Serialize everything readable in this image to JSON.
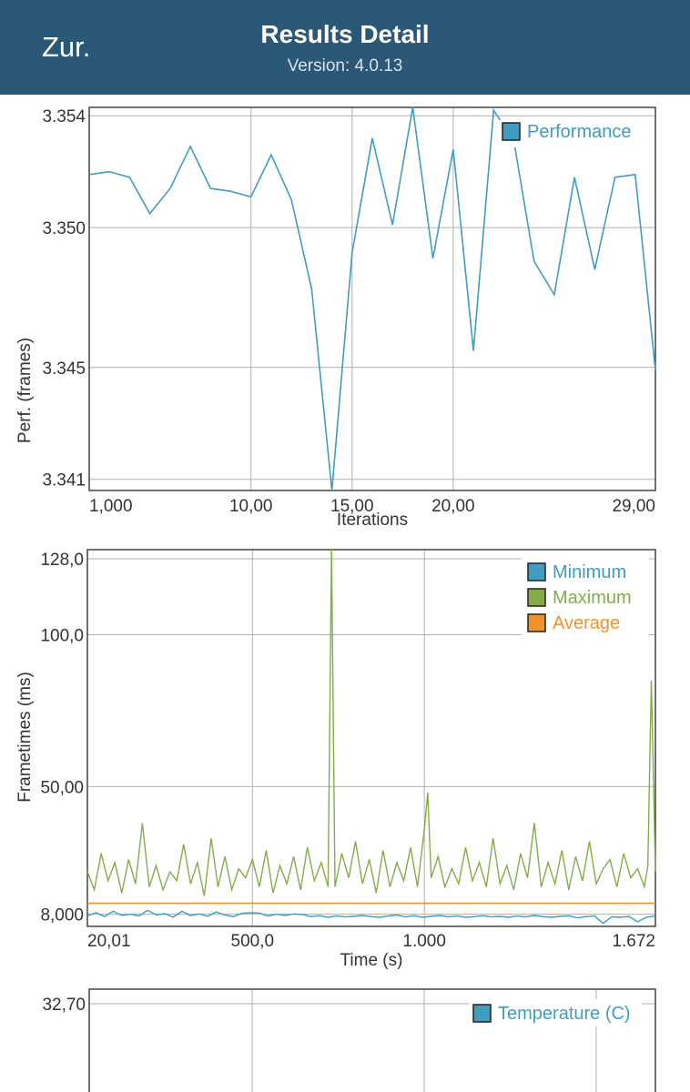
{
  "header": {
    "back_label": "Zur.",
    "title": "Results Detail",
    "version": "Version: 4.0.13"
  },
  "colors": {
    "header_bg": "#2b5876",
    "blue": "#3f9dc0",
    "green": "#86ab4a",
    "orange": "#f0922c"
  },
  "chart_data": [
    {
      "type": "line",
      "xlabel": "Iterations",
      "ylabel": "Perf. (frames)",
      "xlim": [
        1,
        29
      ],
      "ylim": [
        3.3406,
        3.3543
      ],
      "y_ticks": [
        "3.354",
        "3.350",
        "3.345",
        "3.341"
      ],
      "y_tick_values": [
        3.354,
        3.35,
        3.345,
        3.341
      ],
      "x_ticks": [
        "1,000",
        "10,00",
        "15,00",
        "20,00",
        "29,00"
      ],
      "x_tick_values": [
        1,
        9,
        14,
        19,
        24
      ],
      "legend_position": "top-right",
      "grid": true,
      "series": [
        {
          "name": "Performance",
          "color": "#3f9dc0",
          "x": [
            1,
            2,
            3,
            4,
            5,
            6,
            7,
            8,
            9,
            10,
            11,
            12,
            13,
            14,
            15,
            16,
            17,
            18,
            19,
            20,
            21,
            22,
            23,
            24,
            25,
            26,
            27,
            28,
            29
          ],
          "y": [
            3.3519,
            3.352,
            3.3518,
            3.3505,
            3.3514,
            3.3529,
            3.3514,
            3.3513,
            3.3511,
            3.3526,
            3.351,
            3.3478,
            3.3406,
            3.3491,
            3.3532,
            3.3501,
            3.3543,
            3.3489,
            3.3528,
            3.3456,
            3.3542,
            3.3531,
            3.3488,
            3.3476,
            3.3518,
            3.3485,
            3.3518,
            3.3519,
            3.3449
          ]
        }
      ]
    },
    {
      "type": "line",
      "xlabel": "Time (s)",
      "ylabel": "Frametimes (ms)",
      "xlim": [
        20.01,
        1672
      ],
      "ylim": [
        4,
        128
      ],
      "y_ticks": [
        "128,0",
        "100,0",
        "50,00",
        "8,000"
      ],
      "y_tick_values": [
        125,
        100,
        50,
        8
      ],
      "x_ticks": [
        "20,01",
        "500,0",
        "1.000",
        "1.672"
      ],
      "x_tick_values": [
        20.01,
        500,
        1000,
        1500
      ],
      "legend_position": "top-right",
      "grid": true,
      "series": [
        {
          "name": "Minimum",
          "color": "#3f9dc0",
          "x": [
            20,
            45,
            70,
            95,
            120,
            145,
            170,
            195,
            220,
            245,
            270,
            295,
            320,
            345,
            370,
            395,
            420,
            445,
            470,
            495,
            520,
            545,
            570,
            595,
            620,
            645,
            670,
            695,
            720,
            745,
            770,
            795,
            820,
            845,
            870,
            895,
            920,
            945,
            970,
            995,
            1020,
            1045,
            1070,
            1095,
            1120,
            1145,
            1170,
            1195,
            1220,
            1245,
            1270,
            1295,
            1320,
            1345,
            1370,
            1395,
            1420,
            1445,
            1470,
            1495,
            1520,
            1545,
            1570,
            1595,
            1620,
            1645,
            1672
          ],
          "y": [
            7.5,
            8.5,
            7.2,
            9.0,
            7.6,
            8.0,
            7.4,
            9.3,
            7.8,
            8.2,
            7.0,
            9.0,
            7.5,
            8.1,
            7.3,
            8.8,
            7.7,
            7.2,
            8.3,
            8.5,
            8.4,
            7.4,
            8.0,
            7.6,
            8.1,
            7.9,
            7.2,
            7.5,
            7.0,
            7.4,
            7.1,
            7.3,
            7.6,
            7.2,
            7.0,
            7.4,
            7.7,
            7.1,
            7.5,
            7.0,
            7.3,
            7.6,
            7.1,
            7.4,
            7.0,
            7.2,
            7.5,
            7.1,
            7.3,
            7.0,
            7.4,
            7.1,
            7.6,
            7.2,
            7.0,
            7.3,
            7.5,
            6.8,
            7.2,
            7.4,
            5.0,
            7.1,
            7.0,
            7.3,
            5.5,
            7.0,
            7.4
          ]
        },
        {
          "name": "Maximum",
          "color": "#86ab4a",
          "x": [
            20,
            40,
            60,
            80,
            100,
            120,
            140,
            160,
            180,
            200,
            220,
            240,
            260,
            280,
            300,
            320,
            340,
            360,
            380,
            400,
            420,
            440,
            460,
            480,
            500,
            520,
            540,
            560,
            580,
            600,
            620,
            640,
            660,
            680,
            700,
            720,
            730,
            740,
            760,
            780,
            800,
            820,
            840,
            860,
            880,
            900,
            920,
            940,
            960,
            980,
            1000,
            1010,
            1020,
            1040,
            1060,
            1080,
            1100,
            1120,
            1140,
            1160,
            1180,
            1200,
            1220,
            1240,
            1260,
            1280,
            1300,
            1320,
            1340,
            1360,
            1380,
            1400,
            1420,
            1440,
            1460,
            1480,
            1500,
            1520,
            1540,
            1560,
            1580,
            1600,
            1620,
            1640,
            1650,
            1660,
            1672
          ],
          "y": [
            22,
            16,
            28,
            19,
            25,
            15,
            26,
            18,
            38,
            17,
            24,
            16,
            22,
            19,
            31,
            18,
            25,
            14,
            33,
            17,
            27,
            16,
            23,
            20,
            26,
            17,
            29,
            15,
            24,
            18,
            27,
            16,
            30,
            19,
            25,
            17,
            128,
            17,
            28,
            20,
            32,
            18,
            26,
            15,
            29,
            17,
            25,
            19,
            30,
            17,
            36,
            48,
            20,
            27,
            17,
            23,
            18,
            30,
            19,
            25,
            17,
            33,
            18,
            24,
            16,
            28,
            20,
            38,
            17,
            25,
            18,
            29,
            16,
            27,
            19,
            32,
            18,
            23,
            26,
            17,
            28,
            20,
            23,
            17,
            24,
            85,
            22
          ]
        },
        {
          "name": "Average",
          "color": "#f0922c",
          "x": [
            20.01,
            1672
          ],
          "y": [
            11.6,
            11.6
          ]
        }
      ]
    },
    {
      "type": "line",
      "xlabel": "",
      "ylabel": "",
      "y_ticks": [
        "32,70"
      ],
      "legend_position": "top-right",
      "grid": true,
      "series": [
        {
          "name": "Temperature (C)",
          "color": "#3f9dc0",
          "x": [],
          "y": []
        }
      ]
    }
  ]
}
